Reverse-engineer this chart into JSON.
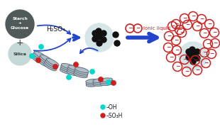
{
  "bg_color": "#ffffff",
  "starch_circle_color": "#505a5a",
  "silica_circle_color": "#c5d8d8",
  "composite_circle_color": "#d5e5e8",
  "black_dot_color": "#111111",
  "arrow_color": "#2244cc",
  "ionic_circle_color": "#cc2020",
  "text_h2so4": "H₂SO₄",
  "text_ionic": "Ionic liquid",
  "text_starch": "Starch\n+\nGlucose",
  "text_silica": "Silica",
  "text_oh": "–OH",
  "text_so3h": "–SO₃H",
  "graphene_color": "#607080",
  "oh_color": "#00d8cc",
  "so3h_color": "#cc2020",
  "starch_r": 20,
  "silica_r": 16,
  "comp_r": 20,
  "comp2_r": 20
}
